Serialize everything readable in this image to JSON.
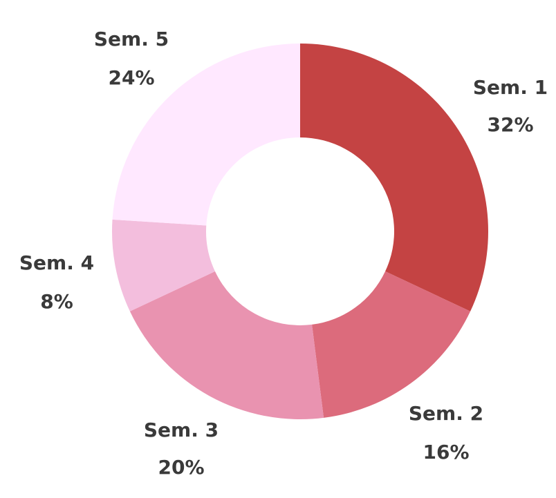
{
  "chart_data": {
    "type": "pie",
    "style": "donut",
    "slices": [
      {
        "label": "Sem. 1",
        "value": 32,
        "display": "32%",
        "color": "#c44343"
      },
      {
        "label": "Sem. 2",
        "value": 16,
        "display": "16%",
        "color": "#dc6b7c"
      },
      {
        "label": "Sem. 3",
        "value": 20,
        "display": "20%",
        "color": "#e993b0"
      },
      {
        "label": "Sem. 4",
        "value": 8,
        "display": "8%",
        "color": "#f3bedd"
      },
      {
        "label": "Sem. 5",
        "value": 24,
        "display": "24%",
        "color": "#ffe8ff"
      }
    ],
    "start": "top",
    "direction": "clockwise"
  }
}
